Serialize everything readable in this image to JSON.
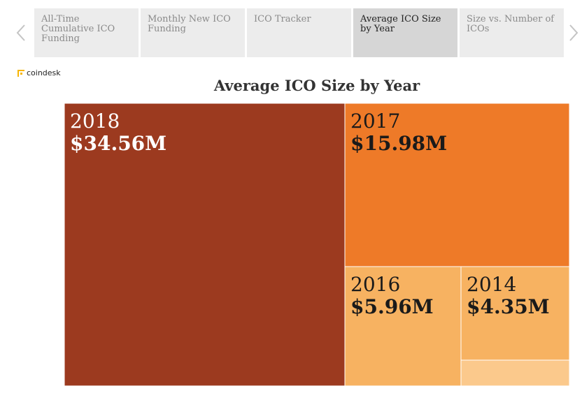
{
  "tabs": [
    {
      "label": "All-Time Cumulative ICO Funding",
      "active": false
    },
    {
      "label": "Monthly New ICO Funding",
      "active": false
    },
    {
      "label": "ICO Tracker",
      "active": false
    },
    {
      "label": "Average ICO Size by Year",
      "active": true
    },
    {
      "label": "Size vs. Number of ICOs",
      "active": false
    }
  ],
  "icons": {
    "prev": "chevron-left-icon",
    "next": "chevron-right-icon"
  },
  "logo": {
    "text": "coindesk",
    "color": "#f7b500"
  },
  "chart_data": {
    "type": "treemap",
    "title": "Average ICO Size by Year",
    "items": [
      {
        "label": "2018",
        "value_label": "$34.56M",
        "value": 34.56,
        "color": "#9c3a1f",
        "text_color": "#ffffff"
      },
      {
        "label": "2017",
        "value_label": "$15.98M",
        "value": 15.98,
        "color": "#ee7a28",
        "text_color": "#1a1a1a"
      },
      {
        "label": "2016",
        "value_label": "$5.96M",
        "value": 5.96,
        "color": "#f7b261",
        "text_color": "#1a1a1a"
      },
      {
        "label": "2014",
        "value_label": "$4.35M",
        "value": 4.35,
        "color": "#f7b261",
        "text_color": "#1a1a1a"
      },
      {
        "label": "",
        "value_label": "",
        "value": 1.4,
        "color": "#fbc98c",
        "text_color": "#1a1a1a"
      }
    ]
  }
}
